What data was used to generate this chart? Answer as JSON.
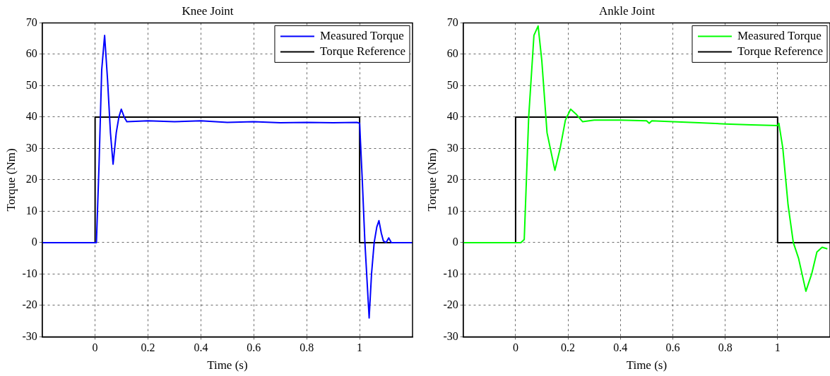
{
  "chart_data": [
    {
      "type": "line",
      "title": "Knee Joint",
      "xlabel": "Time (s)",
      "ylabel": "Torque (Nm)",
      "xlim": [
        -0.2,
        1.2
      ],
      "ylim": [
        -30,
        70
      ],
      "xticks": [
        0,
        0.2,
        0.4,
        0.6,
        0.8,
        1
      ],
      "yticks": [
        -30,
        -20,
        -10,
        0,
        10,
        20,
        30,
        40,
        50,
        60,
        70
      ],
      "grid": true,
      "legend": "top right",
      "marker": "none",
      "series": [
        {
          "name": "Measured Torque",
          "color": "#0000ff",
          "x": [
            -0.2,
            -0.1,
            -0.05,
            0,
            0.005,
            0.015,
            0.025,
            0.036,
            0.047,
            0.058,
            0.068,
            0.08,
            0.09,
            0.099,
            0.11,
            0.12,
            0.2,
            0.3,
            0.4,
            0.5,
            0.6,
            0.7,
            0.8,
            0.9,
            0.99,
            1.0,
            1.01,
            1.02,
            1.036,
            1.045,
            1.055,
            1.065,
            1.073,
            1.082,
            1.09,
            1.1,
            1.11,
            1.12,
            1.2
          ],
          "values": [
            0,
            0,
            0,
            0,
            0,
            25,
            55,
            66,
            52,
            35,
            25,
            35,
            40,
            42.5,
            40,
            38.5,
            38.8,
            38.5,
            38.8,
            38.3,
            38.5,
            38.2,
            38.3,
            38.2,
            38.3,
            38,
            20,
            0,
            -24,
            -10,
            0,
            5,
            7,
            3,
            0.5,
            0,
            1.5,
            0,
            0
          ]
        },
        {
          "name": "Torque Reference",
          "color": "#000000",
          "x": [
            -0.2,
            0,
            0,
            1,
            1,
            1.2
          ],
          "values": [
            0,
            0,
            40,
            40,
            0,
            0
          ]
        }
      ]
    },
    {
      "type": "line",
      "title": "Ankle Joint",
      "xlabel": "Time (s)",
      "ylabel": "Torque (Nm)",
      "xlim": [
        -0.2,
        1.2
      ],
      "ylim": [
        -30,
        70
      ],
      "xticks": [
        0,
        0.2,
        0.4,
        0.6,
        0.8,
        1
      ],
      "yticks": [
        -30,
        -20,
        -10,
        0,
        10,
        20,
        30,
        40,
        50,
        60,
        70
      ],
      "grid": true,
      "legend": "top right",
      "marker": "none",
      "series": [
        {
          "name": "Measured Torque",
          "color": "#00ff00",
          "x": [
            -0.2,
            -0.1,
            0,
            0.02,
            0.033,
            0.05,
            0.07,
            0.086,
            0.1,
            0.12,
            0.15,
            0.17,
            0.19,
            0.21,
            0.23,
            0.256,
            0.3,
            0.4,
            0.5,
            0.51,
            0.52,
            0.6,
            0.7,
            0.8,
            0.9,
            1.0,
            1.005,
            1.02,
            1.04,
            1.06,
            1.08,
            1.108,
            1.13,
            1.15,
            1.17,
            1.19
          ],
          "values": [
            0,
            0,
            0,
            0,
            1,
            40,
            66,
            69,
            58,
            35,
            23,
            30,
            39,
            42.5,
            41,
            38.5,
            39,
            39,
            38.8,
            38,
            38.8,
            38.5,
            38.2,
            37.8,
            37.5,
            37.3,
            38,
            30,
            12,
            0,
            -5,
            -15.5,
            -10,
            -3,
            -1.5,
            -2
          ]
        },
        {
          "name": "Torque Reference",
          "color": "#000000",
          "x": [
            -0.2,
            0,
            0,
            1,
            1,
            1.2
          ],
          "values": [
            0,
            0,
            40,
            40,
            0,
            0
          ]
        }
      ]
    }
  ]
}
